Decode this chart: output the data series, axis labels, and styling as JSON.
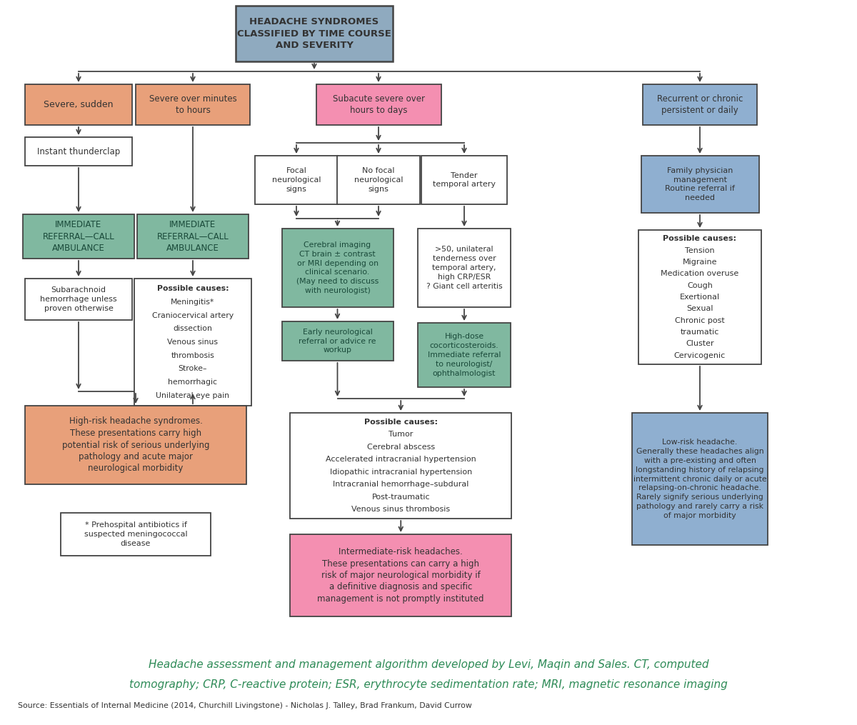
{
  "title": "HEADACHE SYNDROMES\nCLASSIFIED BY TIME COURSE\nAND SEVERITY",
  "colors": {
    "orange": "#e8a07a",
    "pink": "#f48fb1",
    "green": "#80b8a0",
    "blue_light": "#8fafd0",
    "steel_blue": "#8faabf",
    "white": "#ffffff",
    "border": "#444444",
    "text_dark": "#333333",
    "text_green_dark": "#1a4a3a",
    "footer_green": "#2e8b57"
  },
  "footer_line1": "Headache assessment and management algorithm developed by Levi, Maqin and Sales. CT, computed",
  "footer_line2": "tomography; CRP, C-reactive protein; ESR, erythrocyte sedimentation rate; MRI, magnetic resonance imaging",
  "footer_source": "Source: Essentials of Internal Medicine (2014, Churchill Livingstone) - Nicholas J. Talley, Brad Frankum, David Currow"
}
